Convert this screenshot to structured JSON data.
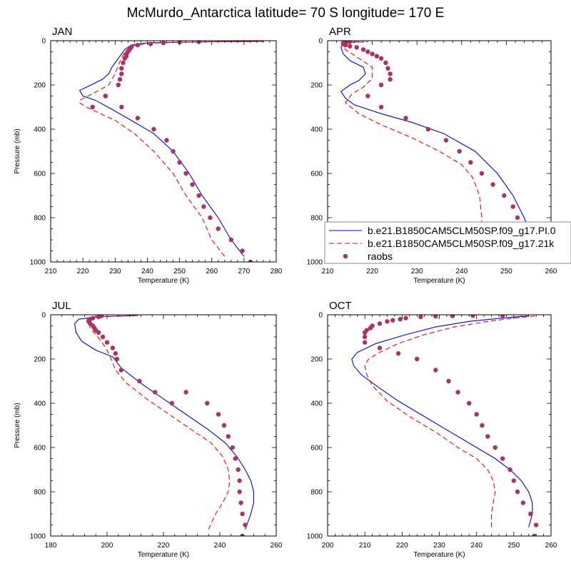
{
  "figure": {
    "title": "McMurdo_Antarctica  latitude= 70 S longitude= 170 E"
  },
  "colors": {
    "model1": "#0000ff",
    "model2": "#ff0000",
    "raobs": "#b03060"
  },
  "legend": {
    "entries": [
      {
        "label": "b.e21.B1850CAM5CLM50SP.f09_g17.PI.0",
        "style": "solid",
        "color": "#0000ff"
      },
      {
        "label": "b.e21.B1850CAM5CLM50SP.f09_g17.21k",
        "style": "dashed",
        "color": "#ff0000"
      },
      {
        "label": "raobs",
        "style": "marker",
        "color": "#b03060"
      }
    ]
  },
  "chart_data": [
    {
      "type": "line",
      "title": "JAN",
      "xlabel": "Temperature (K)",
      "ylabel": "Pressure (mb)",
      "xlim": [
        210,
        280
      ],
      "ylim": [
        1000,
        0
      ],
      "xticks": [
        210,
        220,
        230,
        240,
        250,
        260,
        270,
        280
      ],
      "yticks": [
        0,
        200,
        400,
        600,
        800,
        1000
      ],
      "series": [
        {
          "name": "b.e21.B1850CAM5CLM50SP.f09_g17.PI.0",
          "style": "solid",
          "x": [
            270,
            266,
            262,
            257,
            253,
            248,
            242,
            235,
            229,
            224,
            220,
            219,
            226,
            228,
            229,
            230,
            231,
            232,
            233,
            235,
            240,
            250,
            260,
            276
          ],
          "y": [
            975,
            900,
            800,
            700,
            600,
            500,
            420,
            360,
            310,
            270,
            250,
            225,
            175,
            150,
            120,
            100,
            80,
            60,
            40,
            20,
            10,
            7,
            5,
            3
          ]
        },
        {
          "name": "b.e21.B1850CAM5CLM50SP.f09_g17.21k",
          "style": "dashed",
          "x": [
            264,
            260,
            257,
            252,
            248,
            242,
            236,
            230,
            224,
            221,
            219,
            219,
            223,
            228,
            230,
            231,
            232,
            233,
            235,
            240,
            250,
            260,
            276
          ],
          "y": [
            975,
            900,
            800,
            700,
            600,
            500,
            420,
            360,
            320,
            300,
            280,
            270,
            240,
            200,
            150,
            110,
            80,
            50,
            25,
            12,
            7,
            5,
            3
          ]
        },
        {
          "name": "raobs",
          "style": "marker",
          "x": [
            272,
            269.5,
            266,
            262,
            259.5,
            257.5,
            256,
            254,
            252,
            250,
            248,
            246,
            242,
            237,
            232,
            227,
            223,
            227,
            231,
            231.5,
            232,
            232,
            232.5,
            233,
            233.5,
            233.5,
            234,
            234.5,
            235,
            237,
            241,
            245,
            250,
            256
          ],
          "y": [
            1000,
            950,
            900,
            850,
            800,
            750,
            700,
            650,
            600,
            550,
            500,
            450,
            400,
            350,
            300,
            250,
            300,
            250,
            200,
            175,
            150,
            125,
            100,
            80,
            70,
            60,
            50,
            40,
            30,
            20,
            15,
            10,
            7,
            5
          ]
        }
      ]
    },
    {
      "type": "line",
      "title": "APR",
      "xlabel": "Temperature (K)",
      "ylabel": "",
      "xlim": [
        210,
        260
      ],
      "ylim": [
        1000,
        0
      ],
      "xticks": [
        210,
        220,
        230,
        240,
        250,
        260
      ],
      "yticks": [
        0,
        200,
        400,
        600,
        800,
        1000
      ],
      "series": [
        {
          "name": "b.e21.B1850CAM5CLM50SP.f09_g17.PI.0",
          "style": "solid",
          "x": [
            256,
            255.5,
            255,
            254,
            251.5,
            248,
            243,
            236,
            229,
            222,
            216,
            214,
            213,
            215,
            217,
            218.5,
            218,
            215,
            213.5,
            213,
            213.5,
            214.5,
            217
          ],
          "y": [
            975,
            900,
            850,
            800,
            700,
            600,
            500,
            420,
            370,
            330,
            290,
            260,
            230,
            200,
            180,
            150,
            120,
            90,
            60,
            30,
            15,
            8,
            5
          ]
        },
        {
          "name": "b.e21.B1850CAM5CLM50SP.f09_g17.21k",
          "style": "dashed",
          "x": [
            244,
            244.5,
            244.5,
            244,
            242.5,
            240,
            235,
            229,
            222,
            217,
            214,
            215.5,
            218,
            220,
            220,
            217,
            214,
            213.5,
            215,
            219
          ],
          "y": [
            975,
            900,
            800,
            700,
            620,
            560,
            500,
            440,
            380,
            330,
            280,
            240,
            210,
            170,
            120,
            80,
            40,
            20,
            8,
            5
          ]
        },
        {
          "name": "raobs",
          "style": "marker",
          "x": [
            255.5,
            255,
            254.5,
            253.5,
            252.5,
            251.5,
            249.5,
            247,
            244.5,
            242,
            239.5,
            236.5,
            232.5,
            227.5,
            222,
            219,
            222,
            224,
            224,
            223.5,
            223,
            222,
            221,
            220,
            219,
            218,
            216.5,
            215,
            214,
            213.5,
            213.5,
            214,
            214.5,
            215
          ],
          "y": [
            1000,
            950,
            900,
            850,
            800,
            750,
            700,
            650,
            600,
            550,
            500,
            450,
            400,
            350,
            300,
            250,
            200,
            175,
            150,
            125,
            100,
            80,
            70,
            60,
            50,
            40,
            30,
            25,
            20,
            15,
            10,
            7,
            5,
            4
          ]
        }
      ]
    },
    {
      "type": "line",
      "title": "JUL",
      "xlabel": "Temperature (K)",
      "ylabel": "Pressure (mb)",
      "xlim": [
        180,
        260
      ],
      "ylim": [
        1000,
        0
      ],
      "xticks": [
        180,
        200,
        220,
        240,
        260
      ],
      "yticks": [
        0,
        200,
        400,
        600,
        800,
        1000
      ],
      "series": [
        {
          "name": "b.e21.B1850CAM5CLM50SP.f09_g17.PI.0",
          "style": "solid",
          "x": [
            249,
            251,
            252,
            252,
            251,
            249,
            246,
            242,
            236,
            228,
            220,
            212,
            205,
            202,
            196,
            191,
            189,
            188.5,
            190,
            196,
            203,
            210
          ],
          "y": [
            970,
            900,
            850,
            800,
            750,
            700,
            640,
            580,
            520,
            450,
            380,
            310,
            240,
            190,
            160,
            120,
            80,
            40,
            20,
            10,
            6,
            4
          ]
        },
        {
          "name": "b.e21.B1850CAM5CLM50SP.f09_g17.21k",
          "style": "dashed",
          "x": [
            236,
            238.5,
            241,
            243,
            243.5,
            243,
            241,
            237,
            230,
            222,
            214,
            207,
            203,
            201.5,
            200,
            198,
            196,
            194,
            193.5,
            195,
            199,
            205,
            211
          ],
          "y": [
            970,
            900,
            850,
            800,
            750,
            700,
            640,
            580,
            520,
            450,
            380,
            310,
            250,
            200,
            160,
            120,
            90,
            60,
            30,
            15,
            8,
            5,
            4
          ]
        },
        {
          "name": "raobs",
          "style": "marker",
          "x": [
            248,
            249,
            248,
            247.5,
            247,
            247,
            246.5,
            245.5,
            244.5,
            243,
            241.5,
            239.5,
            235.5,
            228,
            223,
            217,
            211.5,
            205,
            203.5,
            203,
            202,
            200,
            198.5,
            197,
            196,
            195.5,
            195,
            194,
            193.5,
            193.5,
            194,
            195,
            197,
            198
          ],
          "y": [
            1000,
            950,
            900,
            850,
            800,
            750,
            700,
            650,
            600,
            550,
            500,
            450,
            400,
            350,
            400,
            350,
            300,
            250,
            200,
            175,
            150,
            125,
            100,
            80,
            70,
            60,
            50,
            40,
            30,
            25,
            20,
            15,
            10,
            5
          ]
        }
      ]
    },
    {
      "type": "line",
      "title": "OCT",
      "xlabel": "Temperature (K)",
      "ylabel": "",
      "xlim": [
        200,
        260
      ],
      "ylim": [
        1000,
        0
      ],
      "xticks": [
        200,
        210,
        220,
        230,
        240,
        250,
        260
      ],
      "yticks": [
        0,
        200,
        400,
        600,
        800,
        1000
      ],
      "series": [
        {
          "name": "b.e21.B1850CAM5CLM50SP.f09_g17.PI.0",
          "style": "solid",
          "x": [
            254,
            255,
            255,
            254,
            252,
            249,
            245,
            240,
            233,
            226,
            219,
            213,
            209,
            207,
            206.5,
            208,
            213,
            221,
            229,
            238,
            247,
            254
          ],
          "y": [
            960,
            900,
            850,
            800,
            750,
            700,
            650,
            600,
            530,
            460,
            390,
            320,
            270,
            230,
            200,
            170,
            130,
            90,
            55,
            30,
            15,
            5
          ]
        },
        {
          "name": "b.e21.B1850CAM5CLM50SP.f09_g17.21k",
          "style": "dashed",
          "x": [
            244,
            244,
            244.5,
            245,
            244.5,
            243,
            240,
            235,
            229,
            222,
            216,
            212,
            210.5,
            210,
            211,
            214,
            219,
            226,
            234,
            243,
            250,
            256
          ],
          "y": [
            960,
            900,
            850,
            800,
            750,
            700,
            650,
            600,
            530,
            460,
            390,
            320,
            270,
            230,
            200,
            170,
            130,
            90,
            55,
            30,
            15,
            5
          ]
        },
        {
          "name": "raobs",
          "style": "marker",
          "x": [
            255.5,
            256,
            254.5,
            252.5,
            251,
            250,
            249,
            247,
            245,
            243,
            241.5,
            240,
            238,
            235,
            232.5,
            229,
            224,
            219,
            214,
            210,
            210,
            210,
            210.5,
            211.5,
            212,
            214,
            216,
            217.5,
            219.5,
            221,
            225,
            229,
            233.5,
            239,
            247
          ],
          "y": [
            1000,
            950,
            900,
            850,
            800,
            750,
            700,
            650,
            600,
            550,
            500,
            450,
            400,
            350,
            300,
            250,
            200,
            175,
            150,
            125,
            100,
            80,
            70,
            60,
            50,
            40,
            30,
            25,
            20,
            15,
            10,
            7,
            5,
            4,
            3
          ]
        }
      ]
    }
  ]
}
